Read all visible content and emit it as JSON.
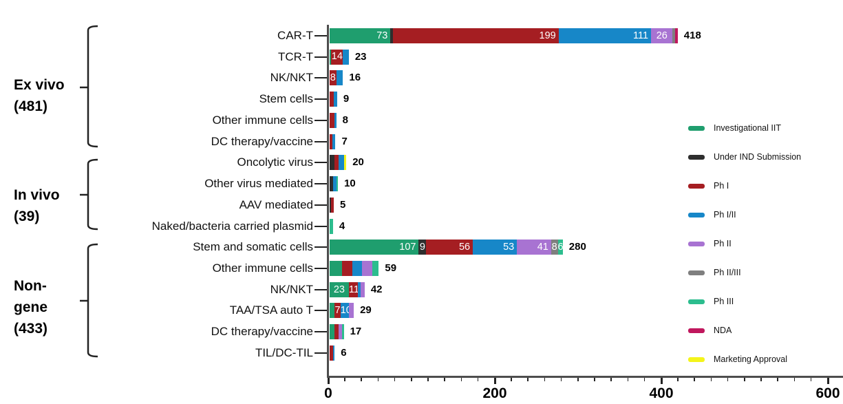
{
  "chart_data": {
    "type": "bar",
    "orientation": "horizontal",
    "stacked": true,
    "title": "",
    "xlabel": "",
    "ylabel": "",
    "xlim": [
      0,
      600
    ],
    "x_major_ticks": [
      "0",
      "200",
      "400",
      "600"
    ],
    "x_minor_step": 20,
    "grid": false,
    "legend_position": "right",
    "legend": [
      {
        "label": "Investigational IIT",
        "color": "#1f9e6e"
      },
      {
        "label": "Under IND Submission",
        "color": "#2e2e2e"
      },
      {
        "label": "Ph I",
        "color": "#a51e22"
      },
      {
        "label": "Ph I/II",
        "color": "#1787c8"
      },
      {
        "label": "Ph II",
        "color": "#a873d2"
      },
      {
        "label": "Ph II/III",
        "color": "#7f7f7f"
      },
      {
        "label": "Ph III",
        "color": "#2cbd8e"
      },
      {
        "label": "NDA",
        "color": "#c0175d"
      },
      {
        "label": "Marketing Approval",
        "color": "#f4f41a"
      }
    ],
    "groups": [
      {
        "name": "Ex vivo",
        "total": 481,
        "label_lines": [
          "Ex vivo",
          "(481)"
        ]
      },
      {
        "name": "In vivo",
        "total": 39,
        "label_lines": [
          "In vivo",
          "(39)"
        ]
      },
      {
        "name": "Non-gene",
        "total": 433,
        "label_lines": [
          "Non-",
          "gene",
          "(433)"
        ]
      }
    ],
    "rows": [
      {
        "category": "CAR-T",
        "group": "Ex vivo",
        "total": 418,
        "segments": [
          {
            "phase": "Investigational IIT",
            "value": 73,
            "label": "73"
          },
          {
            "phase": "Under IND Submission",
            "value": 3,
            "label": ""
          },
          {
            "phase": "Ph I",
            "value": 199,
            "label": "199"
          },
          {
            "phase": "Ph I/II",
            "value": 111,
            "label": "111"
          },
          {
            "phase": "Ph II",
            "value": 26,
            "label": "26"
          },
          {
            "phase": "Ph II/III",
            "value": 3,
            "label": ""
          },
          {
            "phase": "NDA",
            "value": 3,
            "label": ""
          }
        ]
      },
      {
        "category": "TCR-T",
        "group": "Ex vivo",
        "total": 23,
        "segments": [
          {
            "phase": "Investigational IIT",
            "value": 2,
            "label": ""
          },
          {
            "phase": "Ph I",
            "value": 14,
            "label": "14"
          },
          {
            "phase": "Ph I/II",
            "value": 7,
            "label": ""
          }
        ]
      },
      {
        "category": "NK/NKT",
        "group": "Ex vivo",
        "total": 16,
        "segments": [
          {
            "phase": "Ph I",
            "value": 8,
            "label": "8"
          },
          {
            "phase": "Ph I/II",
            "value": 8,
            "label": ""
          }
        ]
      },
      {
        "category": "Stem cells",
        "group": "Ex vivo",
        "total": 9,
        "segments": [
          {
            "phase": "Ph I",
            "value": 5,
            "label": ""
          },
          {
            "phase": "Ph I/II",
            "value": 4,
            "label": ""
          }
        ]
      },
      {
        "category": "Other immune cells",
        "group": "Ex vivo",
        "total": 8,
        "segments": [
          {
            "phase": "Ph I",
            "value": 6,
            "label": ""
          },
          {
            "phase": "Ph I/II",
            "value": 2,
            "label": ""
          }
        ]
      },
      {
        "category": "DC therapy/vaccine",
        "group": "Ex vivo",
        "total": 7,
        "segments": [
          {
            "phase": "Ph I",
            "value": 3,
            "label": ""
          },
          {
            "phase": "Ph I/II",
            "value": 4,
            "label": ""
          }
        ]
      },
      {
        "category": "Oncolytic virus",
        "group": "In vivo",
        "total": 20,
        "segments": [
          {
            "phase": "Under IND Submission",
            "value": 6,
            "label": ""
          },
          {
            "phase": "Ph I",
            "value": 5,
            "label": ""
          },
          {
            "phase": "Ph I/II",
            "value": 6,
            "label": ""
          },
          {
            "phase": "Marketing Approval",
            "value": 3,
            "label": ""
          }
        ]
      },
      {
        "category": "Other virus mediated",
        "group": "In vivo",
        "total": 10,
        "segments": [
          {
            "phase": "Under IND Submission",
            "value": 4,
            "label": ""
          },
          {
            "phase": "Ph I/II",
            "value": 4,
            "label": ""
          },
          {
            "phase": "Ph III",
            "value": 2,
            "label": ""
          }
        ]
      },
      {
        "category": "AAV mediated",
        "group": "In vivo",
        "total": 5,
        "segments": [
          {
            "phase": "Under IND Submission",
            "value": 2,
            "label": ""
          },
          {
            "phase": "Ph I",
            "value": 3,
            "label": ""
          }
        ]
      },
      {
        "category": "Naked/bacteria carried plasmid",
        "group": "In vivo",
        "total": 4,
        "segments": [
          {
            "phase": "Ph III",
            "value": 4,
            "label": ""
          }
        ]
      },
      {
        "category": "Stem and somatic cells",
        "group": "Non-gene",
        "total": 280,
        "segments": [
          {
            "phase": "Investigational IIT",
            "value": 107,
            "label": "107"
          },
          {
            "phase": "Under IND Submission",
            "value": 9,
            "label": "9"
          },
          {
            "phase": "Ph I",
            "value": 56,
            "label": "56"
          },
          {
            "phase": "Ph I/II",
            "value": 53,
            "label": "53"
          },
          {
            "phase": "Ph II",
            "value": 41,
            "label": "41"
          },
          {
            "phase": "Ph II/III",
            "value": 8,
            "label": "8"
          },
          {
            "phase": "Ph III",
            "value": 6,
            "label": "6"
          }
        ]
      },
      {
        "category": "Other immune cells",
        "group": "Non-gene",
        "total": 59,
        "segments": [
          {
            "phase": "Investigational IIT",
            "value": 15,
            "label": ""
          },
          {
            "phase": "Ph I",
            "value": 12,
            "label": ""
          },
          {
            "phase": "Ph I/II",
            "value": 12,
            "label": ""
          },
          {
            "phase": "Ph II",
            "value": 12,
            "label": ""
          },
          {
            "phase": "Ph III",
            "value": 8,
            "label": ""
          }
        ]
      },
      {
        "category": "NK/NKT",
        "group": "Non-gene",
        "total": 42,
        "segments": [
          {
            "phase": "Investigational IIT",
            "value": 23,
            "label": "23"
          },
          {
            "phase": "Ph I",
            "value": 11,
            "label": "11"
          },
          {
            "phase": "Ph I/II",
            "value": 3,
            "label": ""
          },
          {
            "phase": "Ph II",
            "value": 5,
            "label": ""
          }
        ]
      },
      {
        "category": "TAA/TSA auto T",
        "group": "Non-gene",
        "total": 29,
        "segments": [
          {
            "phase": "Investigational IIT",
            "value": 6,
            "label": ""
          },
          {
            "phase": "Ph I",
            "value": 7,
            "label": "7"
          },
          {
            "phase": "Ph I/II",
            "value": 10,
            "label": "10"
          },
          {
            "phase": "Ph II",
            "value": 6,
            "label": ""
          }
        ]
      },
      {
        "category": "DC therapy/vaccine",
        "group": "Non-gene",
        "total": 17,
        "segments": [
          {
            "phase": "Investigational IIT",
            "value": 6,
            "label": ""
          },
          {
            "phase": "Ph I",
            "value": 5,
            "label": ""
          },
          {
            "phase": "Ph II",
            "value": 4,
            "label": ""
          },
          {
            "phase": "Ph III",
            "value": 2,
            "label": ""
          }
        ]
      },
      {
        "category": "TIL/DC-TIL",
        "group": "Non-gene",
        "total": 6,
        "segments": [
          {
            "phase": "Ph I",
            "value": 4,
            "label": ""
          },
          {
            "phase": "Ph I/II",
            "value": 2,
            "label": ""
          }
        ]
      }
    ]
  }
}
